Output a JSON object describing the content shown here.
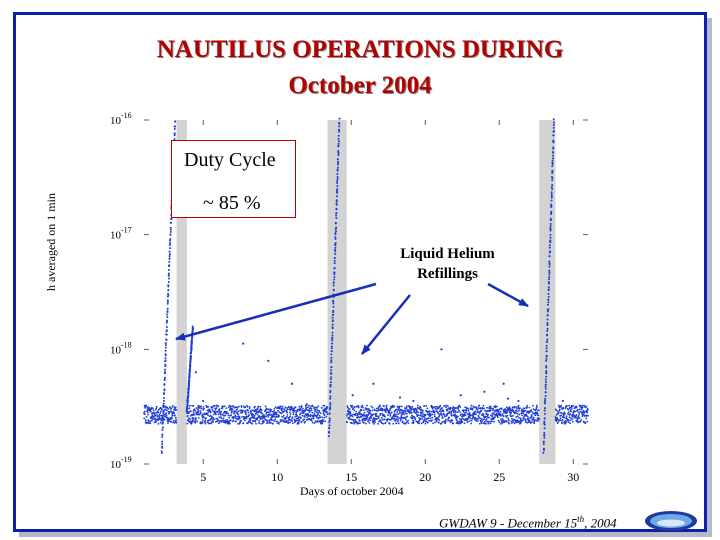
{
  "slide": {
    "title_line1": "NAUTILUS OPERATIONS DURING",
    "title_line2": "October 2004",
    "callout_line1": "Duty Cycle",
    "callout_line2": "~ 85 %",
    "annotation_line1": "Liquid Helium",
    "annotation_line2": "Refillings",
    "footer_main": "GWDAW 9 - December 15",
    "footer_sup": "th",
    "footer_end": ", 2004"
  },
  "chart_data": {
    "type": "scatter",
    "title": "",
    "xlabel": "Days of october 2004",
    "ylabel": "h averaged on 1 min",
    "xlim": [
      1,
      31
    ],
    "ylim_log10": [
      -19,
      -16
    ],
    "yscale": "log",
    "x_ticks": [
      5,
      10,
      15,
      20,
      25,
      30
    ],
    "y_ticks": [
      {
        "exp": -16,
        "label_base": "10",
        "label_exp": "-16"
      },
      {
        "exp": -17,
        "label_base": "10",
        "label_exp": "-17"
      },
      {
        "exp": -18,
        "label_base": "10",
        "label_exp": "-18"
      },
      {
        "exp": -19,
        "label_base": "10",
        "label_exp": "-19"
      }
    ],
    "refill_periods": [
      {
        "start": 3.2,
        "end": 3.9
      },
      {
        "start": 13.4,
        "end": 14.7
      },
      {
        "start": 27.7,
        "end": 28.8
      }
    ],
    "series": [
      {
        "name": "h averaged on 1 min",
        "color": "#1f3dd6",
        "baseline_log10": -18.57,
        "noise_span_log10": 0.08,
        "segments": [
          {
            "start": 1.0,
            "end": 3.2
          },
          {
            "start": 3.9,
            "end": 13.4
          },
          {
            "start": 14.7,
            "end": 27.7
          },
          {
            "start": 28.8,
            "end": 31.0
          }
        ],
        "ramps": [
          {
            "x0": 2.2,
            "y0": -18.9,
            "x1": 3.1,
            "y1": -16.0
          },
          {
            "x0": 3.9,
            "y0": -18.55,
            "x1": 4.3,
            "y1": -17.8
          },
          {
            "x0": 13.5,
            "y0": -18.75,
            "x1": 14.2,
            "y1": -16.0
          },
          {
            "x0": 28.0,
            "y0": -18.9,
            "x1": 28.7,
            "y1": -16.0
          }
        ],
        "outliers": [
          {
            "x": 4.5,
            "y": -18.2
          },
          {
            "x": 5.0,
            "y": -18.45
          },
          {
            "x": 6.3,
            "y": -18.5
          },
          {
            "x": 7.7,
            "y": -17.95
          },
          {
            "x": 9.4,
            "y": -18.1
          },
          {
            "x": 11.0,
            "y": -18.3
          },
          {
            "x": 12.0,
            "y": -18.48
          },
          {
            "x": 15.1,
            "y": -18.4
          },
          {
            "x": 16.5,
            "y": -18.3
          },
          {
            "x": 18.3,
            "y": -18.42
          },
          {
            "x": 19.2,
            "y": -18.45
          },
          {
            "x": 21.1,
            "y": -18.0
          },
          {
            "x": 22.4,
            "y": -18.4
          },
          {
            "x": 24.0,
            "y": -18.37
          },
          {
            "x": 24.7,
            "y": -18.5
          },
          {
            "x": 25.3,
            "y": -18.3
          },
          {
            "x": 25.6,
            "y": -18.43
          },
          {
            "x": 26.3,
            "y": -18.45
          },
          {
            "x": 29.3,
            "y": -18.45
          },
          {
            "x": 30.2,
            "y": -18.5
          }
        ]
      }
    ]
  }
}
